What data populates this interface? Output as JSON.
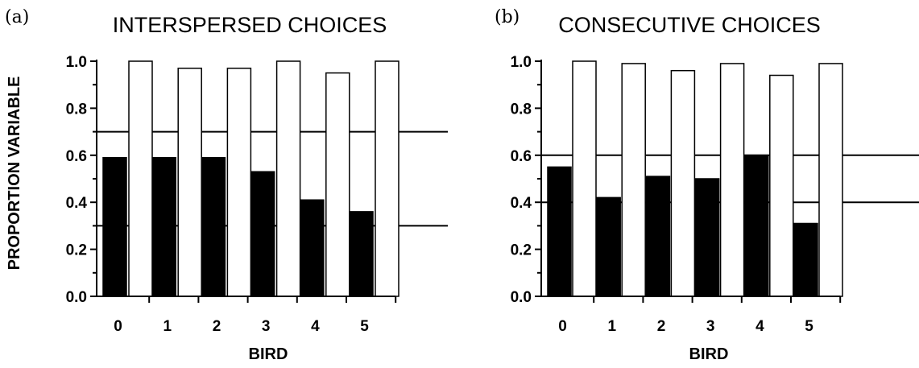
{
  "figure": {
    "ylabel": "PROPORTION VARIABLE"
  },
  "chart_data": [
    {
      "type": "bar",
      "panel": "(a)",
      "title": "INTERSPERSED CHOICES",
      "xlabel": "BIRD",
      "ylabel": "PROPORTION VARIABLE",
      "categories": [
        "0",
        "1",
        "2",
        "3",
        "4",
        "5"
      ],
      "yticks": [
        "0.0",
        "0.2",
        "0.4",
        "0.6",
        "0.8",
        "1.0"
      ],
      "ylim": [
        0,
        1.0
      ],
      "series": [
        {
          "color": "#000000",
          "values": [
            0.59,
            0.59,
            0.59,
            0.53,
            0.41,
            0.36
          ]
        },
        {
          "color": "#ffffff",
          "values": [
            1.0,
            0.97,
            0.97,
            1.0,
            0.95,
            1.0
          ]
        }
      ],
      "reference_lines": [
        0.7,
        0.3
      ]
    },
    {
      "type": "bar",
      "panel": "(b)",
      "title": "CONSECUTIVE CHOICES",
      "xlabel": "BIRD",
      "ylabel": "",
      "categories": [
        "0",
        "1",
        "2",
        "3",
        "4",
        "5"
      ],
      "yticks": [
        "0.0",
        "0.2",
        "0.4",
        "0.6",
        "0.8",
        "1.0"
      ],
      "ylim": [
        0,
        1.0
      ],
      "series": [
        {
          "color": "#000000",
          "values": [
            0.55,
            0.42,
            0.51,
            0.5,
            0.6,
            0.31
          ]
        },
        {
          "color": "#ffffff",
          "values": [
            1.0,
            0.99,
            0.96,
            0.99,
            0.94,
            0.99
          ]
        }
      ],
      "reference_lines": [
        0.6,
        0.4
      ]
    }
  ]
}
